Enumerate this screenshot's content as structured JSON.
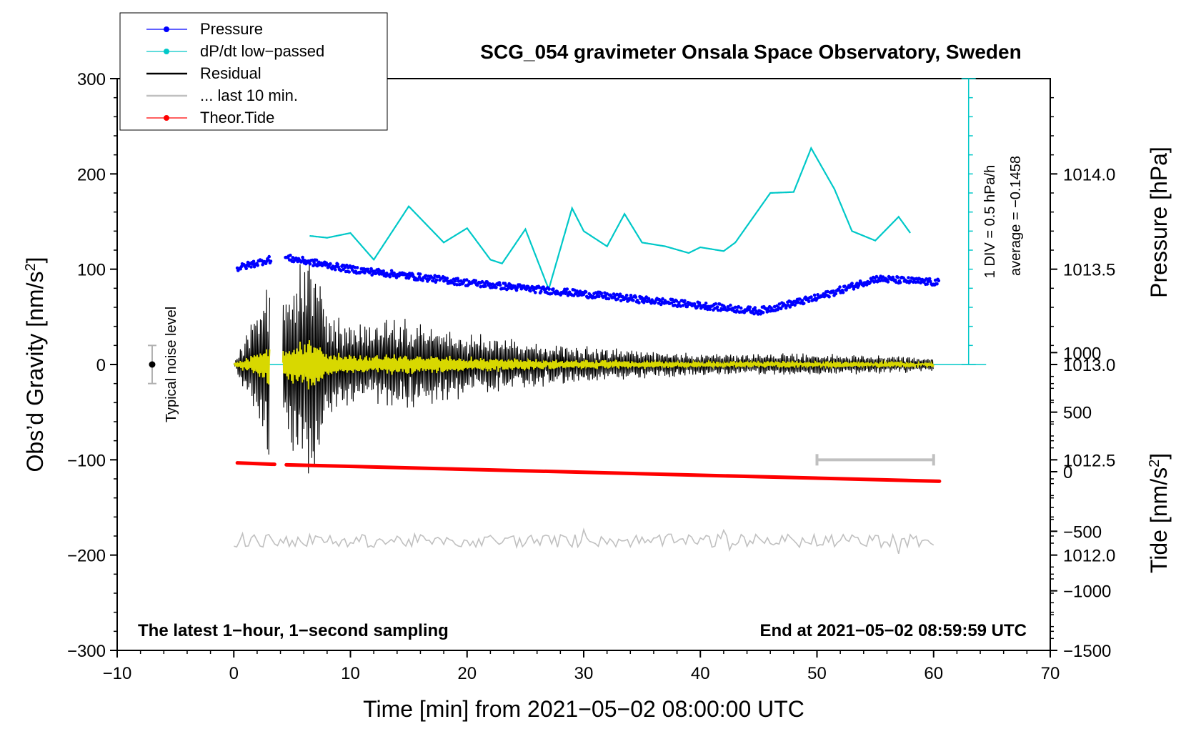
{
  "chart_data": {
    "type": "line",
    "title": "SCG_054 gravimeter Onsala Space Observatory, Sweden",
    "xlabel": "Time [min] from 2021−05−02 08:00:00 UTC",
    "ylabel_left": "Obs’d Gravity [nm/s",
    "ylabel_left_sup": "2",
    "ylabel_left_end": "]",
    "ylabel_right_top": "Pressure [hPa]",
    "ylabel_right_bottom": "Tide [nm/s",
    "ylabel_right_bottom_sup": "2",
    "ylabel_right_bottom_end": "]",
    "xlim": [
      -10,
      70
    ],
    "ylim_left": [
      -300,
      300
    ],
    "pressure_ylim": [
      1011.5,
      1014.5
    ],
    "tide_ylim": [
      -1500,
      3300
    ],
    "x_ticks": [
      -10,
      0,
      10,
      20,
      30,
      40,
      50,
      60,
      70
    ],
    "x_tick_labels": [
      "−10",
      "0",
      "10",
      "20",
      "30",
      "40",
      "50",
      "60",
      "70"
    ],
    "y_left_ticks": [
      -300,
      -200,
      -100,
      0,
      100,
      200,
      300
    ],
    "y_left_tick_labels": [
      "−300",
      "−200",
      "−100",
      "0",
      "100",
      "200",
      "300"
    ],
    "pressure_ticks": [
      1012.0,
      1012.5,
      1013.0,
      1013.5,
      1014.0
    ],
    "pressure_tick_labels": [
      "1012.0",
      "1012.5",
      "1013.0",
      "1013.5",
      "1014.0"
    ],
    "tide_ticks": [
      -1500,
      -1000,
      -500,
      0,
      500,
      1000
    ],
    "tide_tick_labels": [
      "−1500",
      "−1000",
      "−500",
      "0",
      "500",
      "1000"
    ],
    "legend": [
      {
        "label": "Pressure",
        "color": "#0000ff",
        "marker": true
      },
      {
        "label": "dP/dt low−passed",
        "color": "#00c8c8",
        "marker": true
      },
      {
        "label": "Residual",
        "color": "#000000",
        "marker": false
      },
      {
        "label": "... last 10 min.",
        "color": "#c0c0c0",
        "marker": false
      },
      {
        "label": "Theor.Tide",
        "color": "#ff0000",
        "marker": true
      }
    ],
    "series": [
      {
        "name": "Pressure",
        "axis": "pressure",
        "color": "#0000ff",
        "x": [
          0,
          3,
          4.5,
          10,
          20,
          30,
          40,
          45,
          50,
          55,
          60.5
        ],
        "values": [
          1013.5,
          1013.55,
          1013.56,
          1013.5,
          1013.43,
          1013.37,
          1013.31,
          1013.28,
          1013.35,
          1013.45,
          1013.43
        ]
      },
      {
        "name": "dP/dt low-passed",
        "axis": "gravity_px",
        "color": "#00c8c8",
        "x": [
          6.5,
          8,
          10,
          12,
          15,
          18,
          20,
          22,
          23,
          25,
          27,
          29,
          30,
          32,
          33.5,
          35,
          37,
          39,
          40,
          42,
          43,
          46,
          48,
          49.5,
          51.5,
          53,
          55,
          57,
          58
        ],
        "values": [
          135,
          133,
          138,
          110,
          166,
          128,
          143,
          110,
          106,
          142,
          79,
          164,
          140,
          124,
          158,
          128,
          124,
          117,
          123,
          119,
          128,
          180,
          181,
          227,
          184,
          140,
          130,
          155,
          138
        ]
      },
      {
        "name": "Residual",
        "axis": "gravity",
        "color": "#000000",
        "x": [
          0,
          3,
          4.2,
          7,
          8,
          10,
          15,
          20,
          25,
          30,
          35,
          40,
          45,
          50,
          55,
          60
        ],
        "values": [
          0,
          95,
          75,
          135,
          60,
          45,
          50,
          35,
          25,
          20,
          15,
          12,
          12,
          12,
          10,
          8
        ]
      },
      {
        "name": "Theor.Tide",
        "axis": "tide",
        "color": "#ff0000",
        "x": [
          0,
          3.5,
          4.5,
          60.5
        ],
        "values": [
          74,
          62,
          58,
          -80
        ]
      },
      {
        "name": "... last 10 min.",
        "axis": "gravity",
        "color": "#c0c0c0",
        "x": [
          0,
          60
        ],
        "values": [
          -185,
          -185
        ]
      }
    ],
    "average_line": {
      "value": 1013.0,
      "color": "#00c8c8"
    },
    "annotations": {
      "noise_label": "Typical noise level",
      "div_label": "1 DIV = 0.5 hPa/h",
      "average_label": "average = −0.1458",
      "bottom_left": "The latest 1−hour, 1−second sampling",
      "bottom_right": "End at 2021−05−02 08:59:59 UTC"
    },
    "last10_bracket": {
      "x_start": 50,
      "x_end": 60,
      "y": -100
    },
    "noise_bar": {
      "x": -7,
      "y_low": -20,
      "y_high": 20
    }
  }
}
